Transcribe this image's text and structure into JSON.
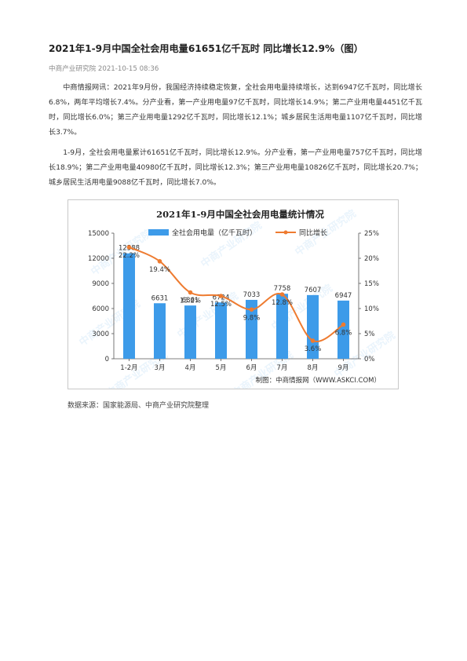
{
  "article": {
    "title": "2021年1-9月中国全社会用电量61651亿千瓦时 同比增长12.9%（图）",
    "meta": "中商产业研究院 2021-10-15 08:36",
    "paragraph1": "中商情报网讯：2021年9月份，我国经济持续稳定恢复，全社会用电量持续增长，达到6947亿千瓦时，同比增长6.8%，两年平均增长7.4%。分产业看，第一产业用电量97亿千瓦时，同比增长14.9%；第二产业用电量4451亿千瓦时，同比增长6.0%；第三产业用电量1292亿千瓦时，同比增长12.1%；城乡居民生活用电量1107亿千瓦时，同比增长3.7%。",
    "paragraph2": "1-9月，全社会用电量累计61651亿千瓦时，同比增长12.9%。分产业看，第一产业用电量757亿千瓦时，同比增长18.9%；第二产业用电量40980亿千瓦时，同比增长12.3%；第三产业用电量10826亿千瓦时，同比增长20.7%；城乡居民生活用电量9088亿千瓦时，同比增长7.0%。",
    "source": "数据来源：国家能源局、中商产业研究院整理"
  },
  "chart_data": {
    "type": "bar",
    "title": "2021年1-9月中国全社会用电量统计情况",
    "categories": [
      "1-2月",
      "3月",
      "4月",
      "5月",
      "6月",
      "7月",
      "8月",
      "9月"
    ],
    "series": [
      {
        "name": "全社会用电量（亿千瓦时）",
        "type": "bar",
        "axis": "left",
        "values": [
          12588,
          6631,
          6361,
          6724,
          7033,
          7758,
          7607,
          6947
        ],
        "labels": [
          "12588",
          "6631",
          "6361",
          "6724",
          "7033",
          "7758",
          "7607",
          "6947"
        ]
      },
      {
        "name": "同比增长",
        "type": "line",
        "axis": "right",
        "values": [
          22.2,
          19.4,
          13.2,
          12.5,
          9.8,
          12.8,
          3.6,
          6.8
        ],
        "labels": [
          "22.2%",
          "19.4%",
          "13.2%",
          "12.5%",
          "9.8%",
          "12.8%",
          "3.6%",
          "6.8%"
        ]
      }
    ],
    "ylim": [
      0,
      15000
    ],
    "yticks": [
      "0",
      "3000",
      "6000",
      "9000",
      "12000",
      "15000"
    ],
    "y2lim": [
      0,
      25
    ],
    "y2ticks": [
      "0%",
      "5%",
      "10%",
      "15%",
      "20%",
      "25%"
    ],
    "legend": "top",
    "grid": false,
    "credit": "制图：中商情报网（WWW.ASKCI.COM）",
    "watermark": "中商产业研究院",
    "colors": {
      "bar": "#3d9be9",
      "line": "#ee7b30",
      "axis": "#555555"
    }
  }
}
